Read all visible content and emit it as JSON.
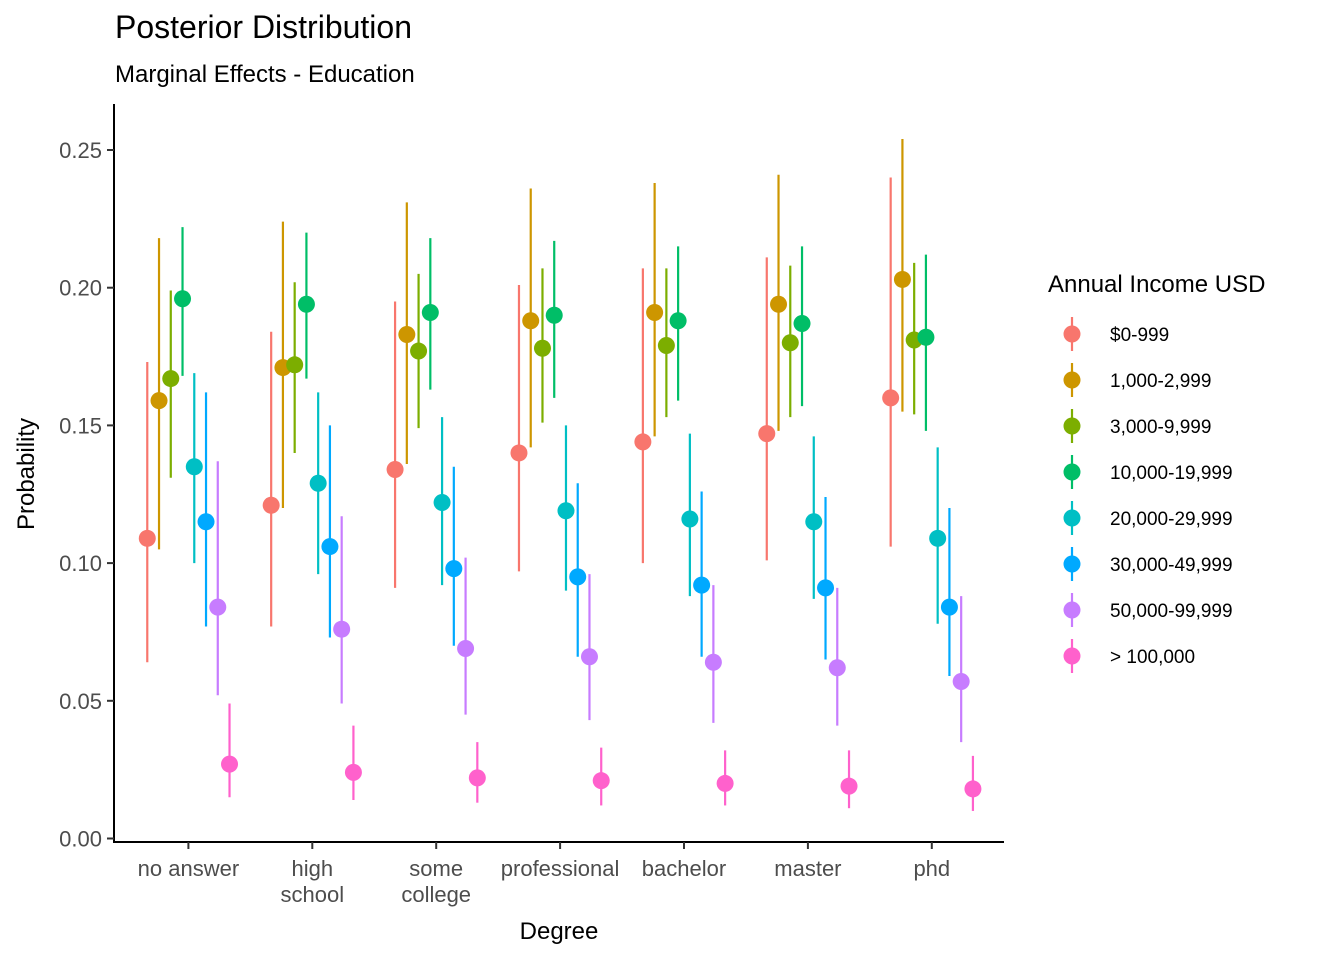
{
  "chart_data": {
    "type": "scatter",
    "subtype": "pointrange",
    "title": "Posterior Distribution",
    "subtitle": "Marginal Effects - Education",
    "xlabel": "Degree",
    "ylabel": "Probability",
    "ylim": [
      0,
      0.26
    ],
    "yticks": [
      "0.00",
      "0.05",
      "0.10",
      "0.15",
      "0.20",
      "0.25"
    ],
    "categories": [
      {
        "lines": [
          "no answer"
        ]
      },
      {
        "lines": [
          "high",
          "school"
        ]
      },
      {
        "lines": [
          "some",
          "college"
        ]
      },
      {
        "lines": [
          "professional"
        ]
      },
      {
        "lines": [
          "bachelor"
        ]
      },
      {
        "lines": [
          "master"
        ]
      },
      {
        "lines": [
          "phd"
        ]
      }
    ],
    "legend_title": "Annual Income USD",
    "legend_position": "right",
    "grid": false,
    "series": [
      {
        "name": "$0-999",
        "color": "#F8766D",
        "values": [
          0.109,
          0.121,
          0.134,
          0.14,
          0.144,
          0.147,
          0.16
        ],
        "lower": [
          0.064,
          0.077,
          0.091,
          0.097,
          0.1,
          0.101,
          0.106
        ],
        "upper": [
          0.173,
          0.184,
          0.195,
          0.201,
          0.207,
          0.211,
          0.24
        ]
      },
      {
        "name": "1,000-2,999",
        "color": "#CD9600",
        "values": [
          0.159,
          0.171,
          0.183,
          0.188,
          0.191,
          0.194,
          0.203
        ],
        "lower": [
          0.105,
          0.12,
          0.136,
          0.142,
          0.146,
          0.148,
          0.155
        ],
        "upper": [
          0.218,
          0.224,
          0.231,
          0.236,
          0.238,
          0.241,
          0.254
        ]
      },
      {
        "name": "3,000-9,999",
        "color": "#7CAE00",
        "values": [
          0.167,
          0.172,
          0.177,
          0.178,
          0.179,
          0.18,
          0.181
        ],
        "lower": [
          0.131,
          0.14,
          0.149,
          0.151,
          0.153,
          0.153,
          0.154
        ],
        "upper": [
          0.199,
          0.202,
          0.205,
          0.207,
          0.207,
          0.208,
          0.209
        ]
      },
      {
        "name": "10,000-19,999",
        "color": "#00BE67",
        "values": [
          0.196,
          0.194,
          0.191,
          0.19,
          0.188,
          0.187,
          0.182
        ],
        "lower": [
          0.168,
          0.167,
          0.163,
          0.16,
          0.159,
          0.157,
          0.148
        ],
        "upper": [
          0.222,
          0.22,
          0.218,
          0.217,
          0.215,
          0.215,
          0.212
        ]
      },
      {
        "name": "20,000-29,999",
        "color": "#00BFC4",
        "values": [
          0.135,
          0.129,
          0.122,
          0.119,
          0.116,
          0.115,
          0.109
        ],
        "lower": [
          0.1,
          0.096,
          0.092,
          0.09,
          0.088,
          0.087,
          0.078
        ],
        "upper": [
          0.169,
          0.162,
          0.153,
          0.15,
          0.147,
          0.146,
          0.142
        ]
      },
      {
        "name": "30,000-49,999",
        "color": "#00A9FF",
        "values": [
          0.115,
          0.106,
          0.098,
          0.095,
          0.092,
          0.091,
          0.084
        ],
        "lower": [
          0.077,
          0.073,
          0.07,
          0.066,
          0.066,
          0.065,
          0.059
        ],
        "upper": [
          0.162,
          0.15,
          0.135,
          0.129,
          0.126,
          0.124,
          0.12
        ]
      },
      {
        "name": "50,000-99,999",
        "color": "#C77CFF",
        "values": [
          0.084,
          0.076,
          0.069,
          0.066,
          0.064,
          0.062,
          0.057
        ],
        "lower": [
          0.052,
          0.049,
          0.045,
          0.043,
          0.042,
          0.041,
          0.035
        ],
        "upper": [
          0.137,
          0.117,
          0.102,
          0.096,
          0.092,
          0.091,
          0.088
        ]
      },
      {
        "name": "> 100,000",
        "color": "#FF61CC",
        "values": [
          0.027,
          0.024,
          0.022,
          0.021,
          0.02,
          0.019,
          0.018
        ],
        "lower": [
          0.015,
          0.014,
          0.013,
          0.012,
          0.012,
          0.011,
          0.01
        ],
        "upper": [
          0.049,
          0.041,
          0.035,
          0.033,
          0.032,
          0.032,
          0.03
        ]
      }
    ]
  }
}
